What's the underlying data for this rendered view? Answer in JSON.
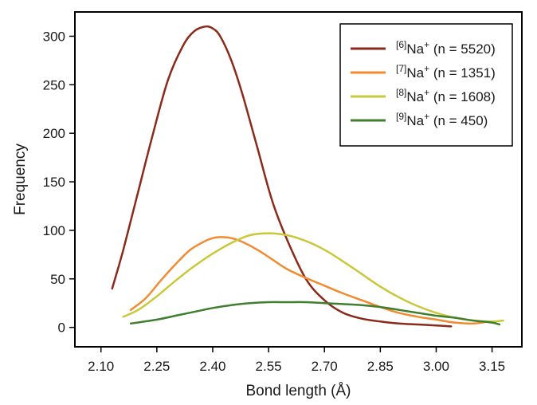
{
  "chart_data": {
    "type": "line",
    "title": "",
    "xlabel": "Bond length (Å)",
    "ylabel": "Frequency",
    "xlim": [
      2.03,
      3.23
    ],
    "ylim": [
      -20,
      325
    ],
    "xticks": [
      2.1,
      2.25,
      2.4,
      2.55,
      2.7,
      2.85,
      3.0,
      3.15
    ],
    "xtick_labels": [
      "2.10",
      "2.25",
      "2.40",
      "2.55",
      "2.70",
      "2.85",
      "3.00",
      "3.15"
    ],
    "yticks": [
      0,
      50,
      100,
      150,
      200,
      250,
      300
    ],
    "ytick_labels": [
      "0",
      "50",
      "100",
      "150",
      "200",
      "250",
      "300"
    ],
    "grid": false,
    "legend_position": "top-right",
    "series": [
      {
        "name": "[6]Na+ (n = 5520)",
        "coord": "[6]",
        "label": "Na",
        "charge": "+",
        "count": "(n = 5520)",
        "color": "#8b2a1a",
        "x": [
          2.13,
          2.16,
          2.2,
          2.24,
          2.28,
          2.32,
          2.35,
          2.38,
          2.4,
          2.42,
          2.45,
          2.48,
          2.52,
          2.56,
          2.6,
          2.65,
          2.7,
          2.75,
          2.8,
          2.85,
          2.9,
          2.95,
          3.0,
          3.04
        ],
        "y": [
          40,
          80,
          140,
          200,
          255,
          290,
          305,
          310,
          308,
          300,
          275,
          240,
          185,
          130,
          90,
          50,
          28,
          15,
          9,
          6,
          4,
          3,
          2,
          1
        ]
      },
      {
        "name": "[7]Na+ (n = 1351)",
        "coord": "[7]",
        "label": "Na",
        "charge": "+",
        "count": "(n = 1351)",
        "color": "#f28a30",
        "x": [
          2.18,
          2.22,
          2.26,
          2.3,
          2.34,
          2.38,
          2.4,
          2.42,
          2.45,
          2.48,
          2.52,
          2.56,
          2.6,
          2.65,
          2.7,
          2.75,
          2.8,
          2.85,
          2.9,
          2.95,
          3.0,
          3.05,
          3.1,
          3.14
        ],
        "y": [
          18,
          30,
          48,
          65,
          80,
          89,
          92,
          93,
          92,
          88,
          80,
          70,
          60,
          51,
          43,
          35,
          28,
          21,
          15,
          11,
          8,
          5,
          4,
          6
        ]
      },
      {
        "name": "[8]Na+ (n = 1608)",
        "coord": "[8]",
        "label": "Na",
        "charge": "+",
        "count": "(n = 1608)",
        "color": "#c9c83a",
        "x": [
          2.16,
          2.2,
          2.25,
          2.3,
          2.35,
          2.4,
          2.45,
          2.5,
          2.55,
          2.6,
          2.65,
          2.7,
          2.75,
          2.8,
          2.85,
          2.9,
          2.95,
          3.0,
          3.05,
          3.1,
          3.15,
          3.18
        ],
        "y": [
          11,
          18,
          32,
          48,
          63,
          76,
          87,
          95,
          97,
          95,
          89,
          80,
          68,
          55,
          42,
          31,
          22,
          15,
          10,
          7,
          6,
          7
        ]
      },
      {
        "name": "[9]Na+ (n = 450)",
        "coord": "[9]",
        "label": "Na",
        "charge": "+",
        "count": "(n = 450)",
        "color": "#3f7f2f",
        "x": [
          2.18,
          2.25,
          2.3,
          2.35,
          2.4,
          2.45,
          2.5,
          2.55,
          2.6,
          2.65,
          2.7,
          2.75,
          2.8,
          2.85,
          2.9,
          2.95,
          3.0,
          3.05,
          3.1,
          3.15,
          3.17
        ],
        "y": [
          4,
          8,
          12,
          16,
          20,
          23,
          25,
          26,
          26,
          26,
          25,
          24,
          23,
          21,
          18,
          15,
          12,
          10,
          7,
          5,
          3
        ]
      }
    ]
  }
}
